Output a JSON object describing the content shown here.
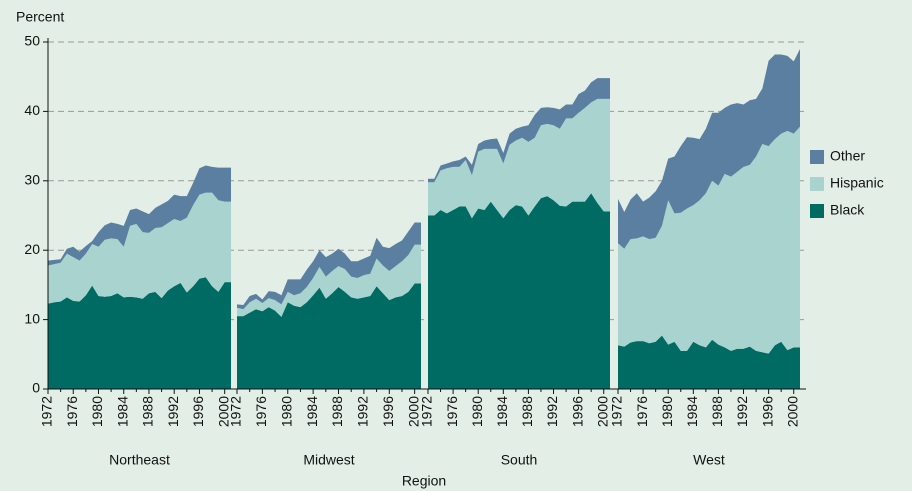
{
  "chart_data": {
    "type": "stacked_area",
    "ylabel": "Percent",
    "xlabel": "Region",
    "ylim": [
      0,
      50
    ],
    "yticks": [
      0,
      10,
      20,
      30,
      40,
      50
    ],
    "grid": true,
    "x": [
      1972,
      1973,
      1974,
      1975,
      1976,
      1977,
      1978,
      1979,
      1980,
      1981,
      1982,
      1983,
      1984,
      1985,
      1986,
      1987,
      1988,
      1989,
      1990,
      1991,
      1992,
      1993,
      1994,
      1995,
      1996,
      1997,
      1998,
      1999,
      2000,
      2001
    ],
    "xticks": [
      1972,
      1976,
      1980,
      1984,
      1988,
      1992,
      1996,
      2000
    ],
    "legend_position": "right",
    "series": [
      {
        "name": "Black",
        "color": "#006b63"
      },
      {
        "name": "Hispanic",
        "color": "#a8d3cf"
      },
      {
        "name": "Other",
        "color": "#5b7fa0"
      }
    ],
    "panels": [
      {
        "name": "Northeast",
        "values": [
          [
            12.3,
            12.5,
            12.6,
            13.2,
            12.7,
            12.6,
            13.5,
            14.9,
            13.4,
            13.3,
            13.4,
            13.8,
            13.2,
            13.3,
            13.2,
            13.0,
            13.8,
            14.0,
            13.1,
            14.2,
            14.8,
            15.3,
            13.9,
            14.8,
            15.9,
            16.1,
            14.8,
            14.0,
            15.4,
            15.4
          ],
          [
            5.5,
            5.5,
            5.6,
            6.3,
            6.3,
            5.9,
            6.0,
            6.0,
            7.1,
            8.2,
            8.3,
            7.8,
            7.3,
            10.2,
            10.6,
            9.6,
            8.7,
            9.2,
            10.2,
            9.7,
            9.7,
            8.9,
            10.8,
            11.7,
            12.1,
            12.2,
            13.5,
            13.2,
            11.6,
            11.6
          ],
          [
            0.7,
            0.6,
            0.5,
            0.7,
            1.5,
            1.3,
            1.1,
            0.4,
            2.1,
            2.1,
            2.3,
            2.2,
            3.0,
            2.3,
            2.2,
            3.0,
            2.7,
            2.9,
            3.3,
            3.2,
            3.5,
            3.6,
            3.1,
            3.2,
            3.8,
            3.9,
            3.7,
            4.7,
            4.9,
            4.9
          ]
        ]
      },
      {
        "name": "Midwest",
        "values": [
          [
            10.5,
            10.5,
            11.0,
            11.5,
            11.2,
            11.8,
            11.3,
            10.4,
            12.5,
            12.0,
            11.8,
            12.5,
            13.5,
            14.6,
            13.0,
            13.8,
            14.7,
            14.0,
            13.2,
            13.0,
            13.2,
            13.4,
            14.8,
            13.8,
            12.8,
            13.2,
            13.4,
            14.0,
            15.2,
            15.2
          ],
          [
            1.2,
            1.0,
            1.5,
            1.5,
            1.2,
            1.3,
            1.5,
            1.8,
            1.5,
            1.5,
            2.0,
            2.2,
            2.5,
            3.0,
            3.2,
            3.2,
            3.0,
            3.3,
            3.0,
            3.0,
            3.2,
            3.2,
            4.0,
            4.0,
            4.2,
            4.5,
            5.0,
            5.3,
            5.6,
            5.6
          ],
          [
            0.5,
            0.6,
            0.9,
            0.7,
            0.5,
            1.0,
            1.2,
            1.3,
            1.8,
            2.3,
            2.0,
            2.5,
            2.4,
            2.4,
            2.8,
            2.5,
            2.5,
            2.2,
            2.2,
            2.4,
            2.4,
            2.6,
            3.0,
            2.7,
            3.3,
            3.2,
            3.0,
            3.4,
            3.2,
            3.2
          ]
        ]
      },
      {
        "name": "South",
        "values": [
          [
            25.0,
            25.0,
            25.8,
            25.3,
            25.8,
            26.3,
            26.3,
            24.6,
            26.0,
            25.8,
            27.0,
            25.8,
            24.6,
            25.8,
            26.5,
            26.3,
            25.0,
            26.3,
            27.5,
            27.8,
            27.2,
            26.4,
            26.3,
            27.0,
            27.0,
            27.0,
            28.2,
            26.8,
            25.6,
            25.6
          ],
          [
            4.8,
            4.8,
            5.7,
            6.5,
            6.2,
            5.7,
            6.7,
            6.2,
            8.2,
            8.8,
            7.6,
            8.8,
            7.9,
            9.4,
            9.3,
            9.9,
            10.6,
            9.9,
            10.5,
            10.4,
            10.8,
            11.1,
            12.7,
            12.0,
            12.8,
            13.5,
            13.1,
            15.0,
            16.2,
            16.2
          ],
          [
            0.5,
            0.5,
            0.7,
            0.7,
            0.8,
            1.0,
            0.5,
            1.5,
            1.1,
            1.2,
            1.4,
            1.5,
            1.5,
            1.6,
            1.7,
            1.6,
            2.4,
            3.3,
            2.5,
            2.4,
            2.5,
            2.8,
            2.0,
            2.0,
            2.7,
            2.5,
            2.9,
            3.0,
            3.0,
            3.0
          ]
        ]
      },
      {
        "name": "West",
        "values": [
          [
            6.3,
            6.1,
            6.7,
            6.9,
            6.9,
            6.6,
            6.8,
            7.7,
            6.4,
            6.8,
            5.5,
            5.5,
            6.8,
            6.3,
            6.0,
            7.1,
            6.4,
            6.0,
            5.5,
            5.8,
            5.8,
            6.1,
            5.5,
            5.3,
            5.1,
            6.3,
            6.8,
            5.6,
            6.0,
            6.0
          ],
          [
            14.7,
            14.1,
            14.9,
            14.8,
            15.1,
            15.0,
            15.0,
            15.8,
            20.8,
            18.5,
            19.9,
            20.5,
            19.7,
            20.9,
            22.2,
            22.9,
            22.9,
            25.0,
            25.1,
            25.5,
            26.2,
            26.2,
            28.0,
            30.0,
            29.9,
            29.7,
            30.0,
            31.6,
            30.8,
            31.8
          ],
          [
            6.4,
            5.3,
            5.7,
            6.5,
            5.0,
            6.0,
            6.7,
            6.5,
            6.0,
            8.2,
            9.6,
            10.3,
            9.7,
            8.8,
            9.3,
            9.8,
            10.5,
            9.5,
            10.4,
            9.9,
            9.0,
            9.3,
            8.3,
            8.0,
            12.3,
            12.2,
            11.4,
            10.8,
            10.4,
            11.2
          ]
        ]
      }
    ]
  }
}
